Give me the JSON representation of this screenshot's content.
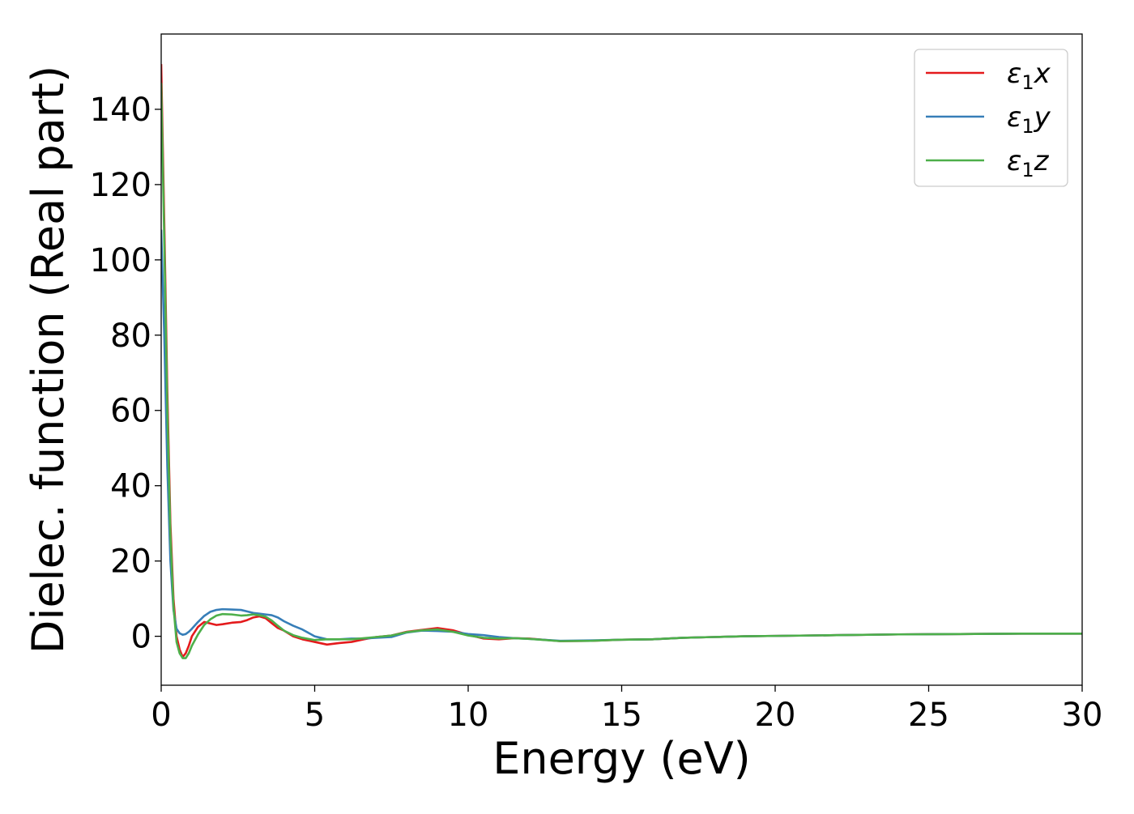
{
  "chart_data": {
    "type": "line",
    "title": "",
    "xlabel": "Energy (eV)",
    "ylabel": "Dielec. function (Real part)",
    "xlim": [
      0,
      30
    ],
    "ylim": [
      -13,
      160
    ],
    "xticks": [
      0,
      5,
      10,
      15,
      20,
      25,
      30
    ],
    "yticks": [
      0,
      20,
      40,
      60,
      80,
      100,
      120,
      140
    ],
    "grid": false,
    "legend_position": "top-right",
    "series": [
      {
        "name": "ε1x",
        "legend": {
          "symbol": "ε",
          "sub": "1",
          "var": "x"
        },
        "color": "#e41a1c",
        "x": [
          0,
          0.1,
          0.2,
          0.3,
          0.4,
          0.5,
          0.6,
          0.7,
          0.8,
          0.9,
          1.0,
          1.2,
          1.4,
          1.6,
          1.8,
          2.0,
          2.3,
          2.6,
          2.8,
          3.0,
          3.2,
          3.4,
          3.6,
          3.8,
          4.0,
          4.3,
          4.6,
          5.0,
          5.4,
          5.8,
          6.2,
          6.6,
          7.0,
          7.5,
          8.0,
          8.5,
          9.0,
          9.5,
          10.0,
          10.5,
          11.0,
          11.5,
          12.0,
          13.0,
          14.0,
          15.0,
          16.0,
          17.0,
          18.0,
          19.0,
          20.0,
          22.0,
          24.0,
          26.0,
          28.0,
          30.0
        ],
        "y": [
          152,
          110,
          65,
          30,
          10,
          0,
          -3.5,
          -5.5,
          -4.5,
          -2.5,
          0,
          2.5,
          3.8,
          3.4,
          3.0,
          3.2,
          3.6,
          3.8,
          4.3,
          5.0,
          5.3,
          4.8,
          3.5,
          2.2,
          1.5,
          0,
          -0.8,
          -1.5,
          -2.2,
          -1.8,
          -1.5,
          -0.8,
          -0.2,
          0.2,
          1.2,
          1.7,
          2.2,
          1.6,
          0.4,
          -0.6,
          -0.8,
          -0.5,
          -0.6,
          -1.3,
          -1.2,
          -0.9,
          -0.8,
          -0.4,
          -0.2,
          0,
          0.1,
          0.3,
          0.5,
          0.6,
          0.7,
          0.7
        ]
      },
      {
        "name": "ε1y",
        "legend": {
          "symbol": "ε",
          "sub": "1",
          "var": "y"
        },
        "color": "#377eb8",
        "x": [
          0,
          0.1,
          0.2,
          0.3,
          0.4,
          0.5,
          0.6,
          0.7,
          0.8,
          0.9,
          1.0,
          1.2,
          1.4,
          1.6,
          1.8,
          2.0,
          2.3,
          2.6,
          2.8,
          3.0,
          3.2,
          3.4,
          3.6,
          3.8,
          4.0,
          4.3,
          4.6,
          5.0,
          5.4,
          5.8,
          6.2,
          6.6,
          7.0,
          7.5,
          8.0,
          8.5,
          9.0,
          9.5,
          10.0,
          10.5,
          11.0,
          11.5,
          12.0,
          13.0,
          14.0,
          15.0,
          16.0,
          17.0,
          18.0,
          19.0,
          20.0,
          22.0,
          24.0,
          26.0,
          28.0,
          30.0
        ],
        "y": [
          108,
          80,
          45,
          20,
          7,
          2,
          0.8,
          0.4,
          0.6,
          1.2,
          2.0,
          3.8,
          5.4,
          6.5,
          7.0,
          7.2,
          7.1,
          7.0,
          6.6,
          6.2,
          6.0,
          5.8,
          5.6,
          5.0,
          4.0,
          2.8,
          1.8,
          0,
          -0.8,
          -0.8,
          -0.6,
          -0.6,
          -0.4,
          -0.2,
          1.0,
          1.5,
          1.4,
          1.2,
          0.6,
          0.3,
          -0.2,
          -0.5,
          -0.7,
          -1.2,
          -1.1,
          -0.9,
          -0.8,
          -0.4,
          -0.2,
          0,
          0.1,
          0.3,
          0.5,
          0.6,
          0.7,
          0.7
        ]
      },
      {
        "name": "ε1z",
        "legend": {
          "symbol": "ε",
          "sub": "1",
          "var": "z"
        },
        "color": "#4daf4a",
        "x": [
          0,
          0.1,
          0.2,
          0.3,
          0.4,
          0.5,
          0.6,
          0.7,
          0.8,
          0.9,
          1.0,
          1.2,
          1.4,
          1.6,
          1.8,
          2.0,
          2.3,
          2.6,
          2.8,
          3.0,
          3.2,
          3.4,
          3.6,
          3.8,
          4.0,
          4.3,
          4.6,
          5.0,
          5.4,
          5.8,
          6.2,
          6.6,
          7.0,
          7.5,
          8.0,
          8.5,
          9.0,
          9.5,
          10.0,
          10.5,
          11.0,
          11.5,
          12.0,
          13.0,
          14.0,
          15.0,
          16.0,
          17.0,
          18.0,
          19.0,
          20.0,
          22.0,
          24.0,
          26.0,
          28.0,
          30.0
        ],
        "y": [
          147,
          105,
          60,
          27,
          8,
          -1.5,
          -4.5,
          -5.8,
          -5.8,
          -4.5,
          -2.5,
          0.5,
          3.0,
          4.5,
          5.5,
          5.9,
          5.8,
          5.5,
          5.6,
          5.8,
          5.6,
          5.2,
          4.2,
          2.8,
          1.5,
          0.3,
          -0.4,
          -1.0,
          -0.8,
          -0.8,
          -0.8,
          -0.5,
          -0.2,
          0.2,
          1.1,
          1.6,
          1.8,
          1.2,
          0.2,
          -0.4,
          -0.6,
          -0.5,
          -0.7,
          -1.3,
          -1.2,
          -0.9,
          -0.8,
          -0.4,
          -0.2,
          0,
          0.1,
          0.3,
          0.5,
          0.6,
          0.7,
          0.7
        ]
      }
    ]
  }
}
